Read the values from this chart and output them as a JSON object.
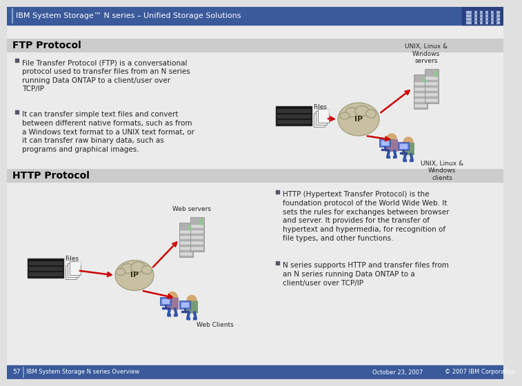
{
  "header_text": "IBM System Storage™ N series – Unified Storage Solutions",
  "header_bg": "#3a5a9b",
  "header_text_color": "#ffffff",
  "slide_bg": "#e0e0e0",
  "content_bg": "#e8e8e8",
  "section_bar_color": "#c8c8c8",
  "ftp_title": "FTP Protocol",
  "ftp_bullet1": "File Transfer Protocol (FTP) is a conversational\nprotocol used to transfer files from an N series\nrunning Data ONTAP to a client/user over\nTCP/IP",
  "ftp_bullet2": "It can transfer simple text files and convert\nbetween different native formats, such as from\na Windows text format to a UNIX text format, or\nit can transfer raw binary data, such as\nprograms and graphical images.",
  "ftp_label_files": "Files",
  "ftp_label_ip": "IP",
  "ftp_label_servers": "UNIX, Linux &\nWindows\nservers",
  "ftp_label_clients": "UNIX, Linux &\nWindows\nclients",
  "http_title": "HTTP Protocol",
  "http_label_files": "Files",
  "http_label_ip": "IP",
  "http_label_webservers": "Web servers",
  "http_label_webclients": "Web Clients",
  "http_bullet1": "HTTP (Hypertext Transfer Protocol) is the\nfoundation protocol of the World Wide Web. It\nsets the rules for exchanges between browser\nand server. It provides for the transfer of\nhypertext and hypermedia, for recognition of\nfile types, and other functions.",
  "http_bullet2": "N series supports HTTP and transfer files from\nan N series running Data ONTAP to a\nclient/user over TCP/IP",
  "footer_page": "57",
  "footer_center": "IBM System Storage N series Overview",
  "footer_date": "October 23, 2007",
  "footer_copy": "© 2007 IBM Corporation",
  "footer_bg": "#3a5a9b",
  "footer_text_color": "#ffffff",
  "title_fontsize": 10,
  "body_fontsize": 7.5,
  "header_fontsize": 8,
  "label_fontsize": 6.5
}
